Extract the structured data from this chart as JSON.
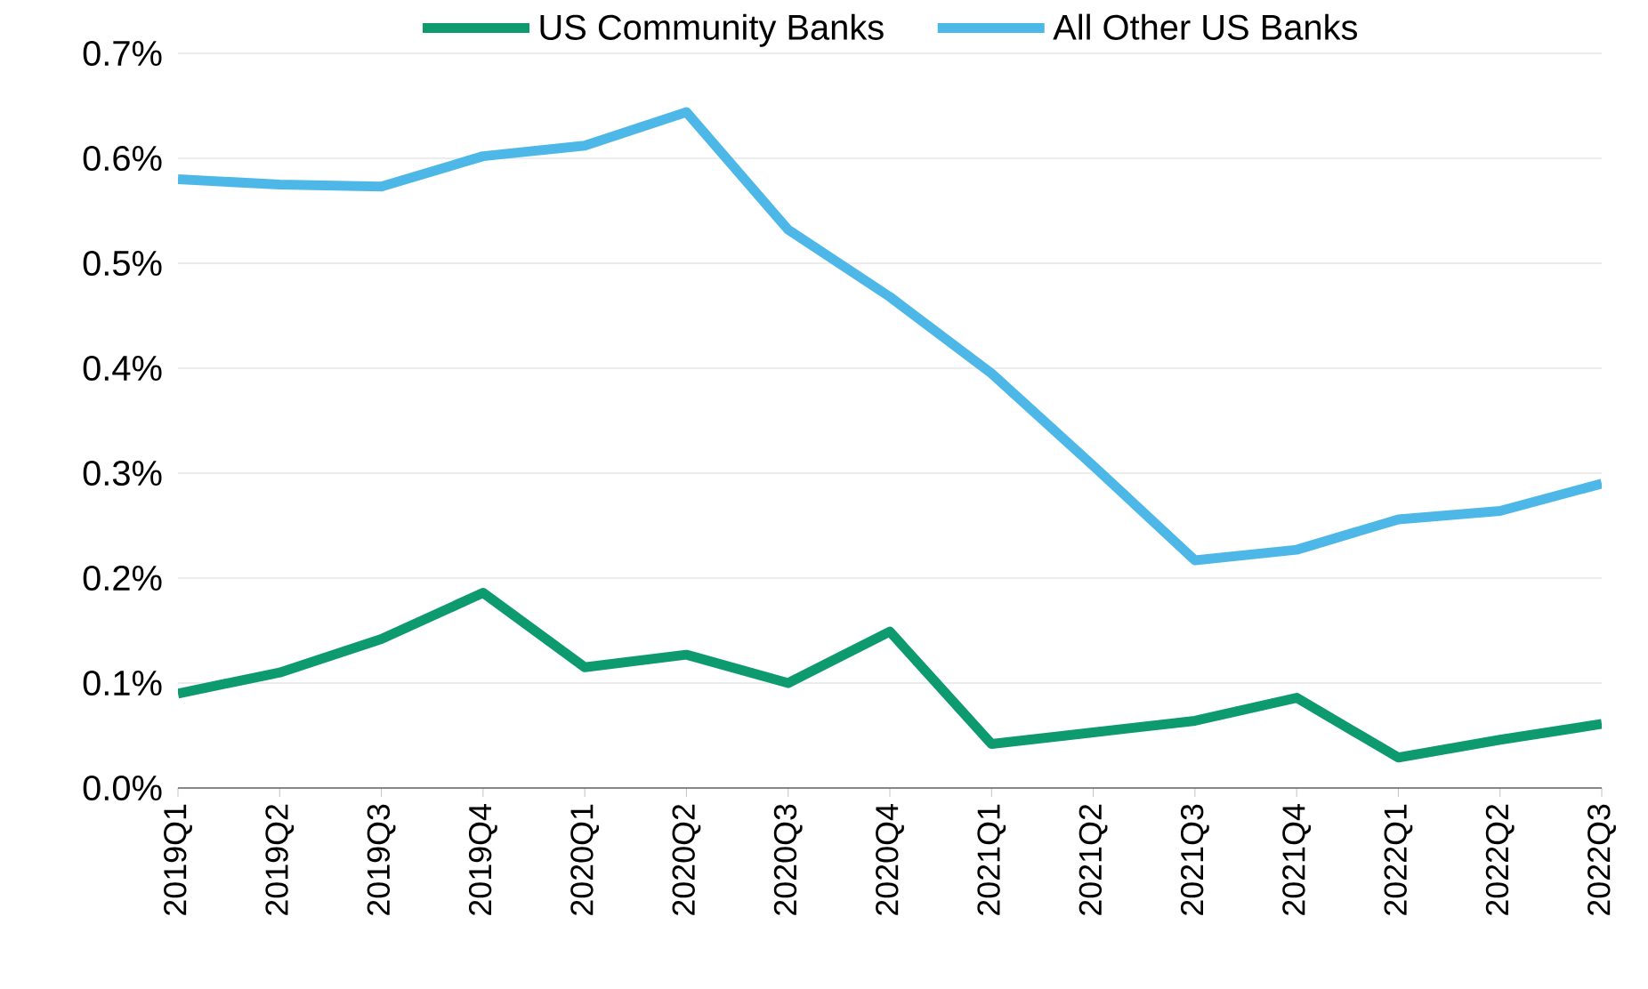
{
  "chart_data": {
    "type": "line",
    "categories": [
      "2019Q1",
      "2019Q2",
      "2019Q3",
      "2019Q4",
      "2020Q1",
      "2020Q2",
      "2020Q3",
      "2020Q4",
      "2021Q1",
      "2021Q2",
      "2021Q3",
      "2021Q4",
      "2022Q1",
      "2022Q2",
      "2022Q3"
    ],
    "series": [
      {
        "name": "US Community Banks",
        "color": "#0e9a6f",
        "values": [
          0.09,
          0.11,
          0.142,
          0.186,
          0.115,
          0.127,
          0.1,
          0.149,
          0.042,
          0.053,
          0.064,
          0.086,
          0.029,
          0.046,
          0.061
        ]
      },
      {
        "name": "All Other US Banks",
        "color": "#4db8e8",
        "values": [
          0.58,
          0.575,
          0.573,
          0.602,
          0.612,
          0.644,
          0.532,
          0.468,
          0.395,
          0.307,
          0.217,
          0.227,
          0.256,
          0.264,
          0.29
        ]
      }
    ],
    "ylim": [
      0,
      0.7
    ],
    "yticks": [
      {
        "value": 0,
        "label": "0.0%"
      },
      {
        "value": 0.1,
        "label": "0.1%"
      },
      {
        "value": 0.2,
        "label": "0.2%"
      },
      {
        "value": 0.3,
        "label": "0.3%"
      },
      {
        "value": 0.4,
        "label": "0.4%"
      },
      {
        "value": 0.5,
        "label": "0.5%"
      },
      {
        "value": 0.6,
        "label": "0.6%"
      },
      {
        "value": 0.7,
        "label": "0.7%"
      }
    ],
    "grid": "y",
    "legend": "top",
    "marker": "none",
    "line_style": "solid"
  }
}
